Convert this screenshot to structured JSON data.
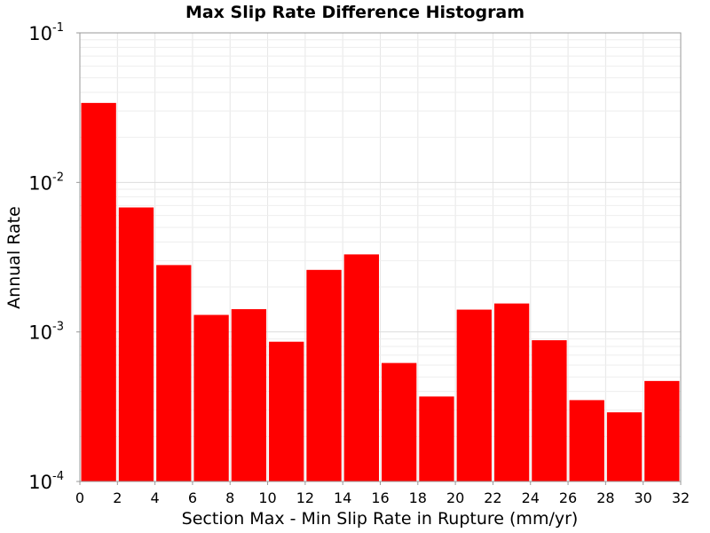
{
  "chart_data": {
    "type": "bar",
    "title": "Max Slip Rate Difference Histogram",
    "xlabel": "Section Max - Min Slip Rate in Rupture (mm/yr)",
    "ylabel": "Annual Rate",
    "x_bin_edges": [
      0,
      2,
      4,
      6,
      8,
      10,
      12,
      14,
      16,
      18,
      20,
      22,
      24,
      26,
      28,
      30,
      32
    ],
    "values": [
      0.034,
      0.0068,
      0.0028,
      0.0013,
      0.00142,
      0.00086,
      0.0026,
      0.0033,
      0.00062,
      0.00037,
      0.00141,
      0.00155,
      0.00088,
      0.00035,
      0.00029,
      0.00047
    ],
    "xlim": [
      0,
      32
    ],
    "ylim": [
      0.0001,
      0.1
    ],
    "yscale": "log",
    "x_ticks": [
      "0",
      "2",
      "4",
      "6",
      "8",
      "10",
      "12",
      "14",
      "16",
      "18",
      "20",
      "22",
      "24",
      "26",
      "28",
      "30",
      "32"
    ],
    "y_ticks": [
      {
        "base": "10",
        "exp": "-4"
      },
      {
        "base": "10",
        "exp": "-3"
      },
      {
        "base": "10",
        "exp": "-2"
      },
      {
        "base": "10",
        "exp": "-1"
      }
    ],
    "bar_color": "#ff0000",
    "grid": true,
    "legend": "none"
  }
}
